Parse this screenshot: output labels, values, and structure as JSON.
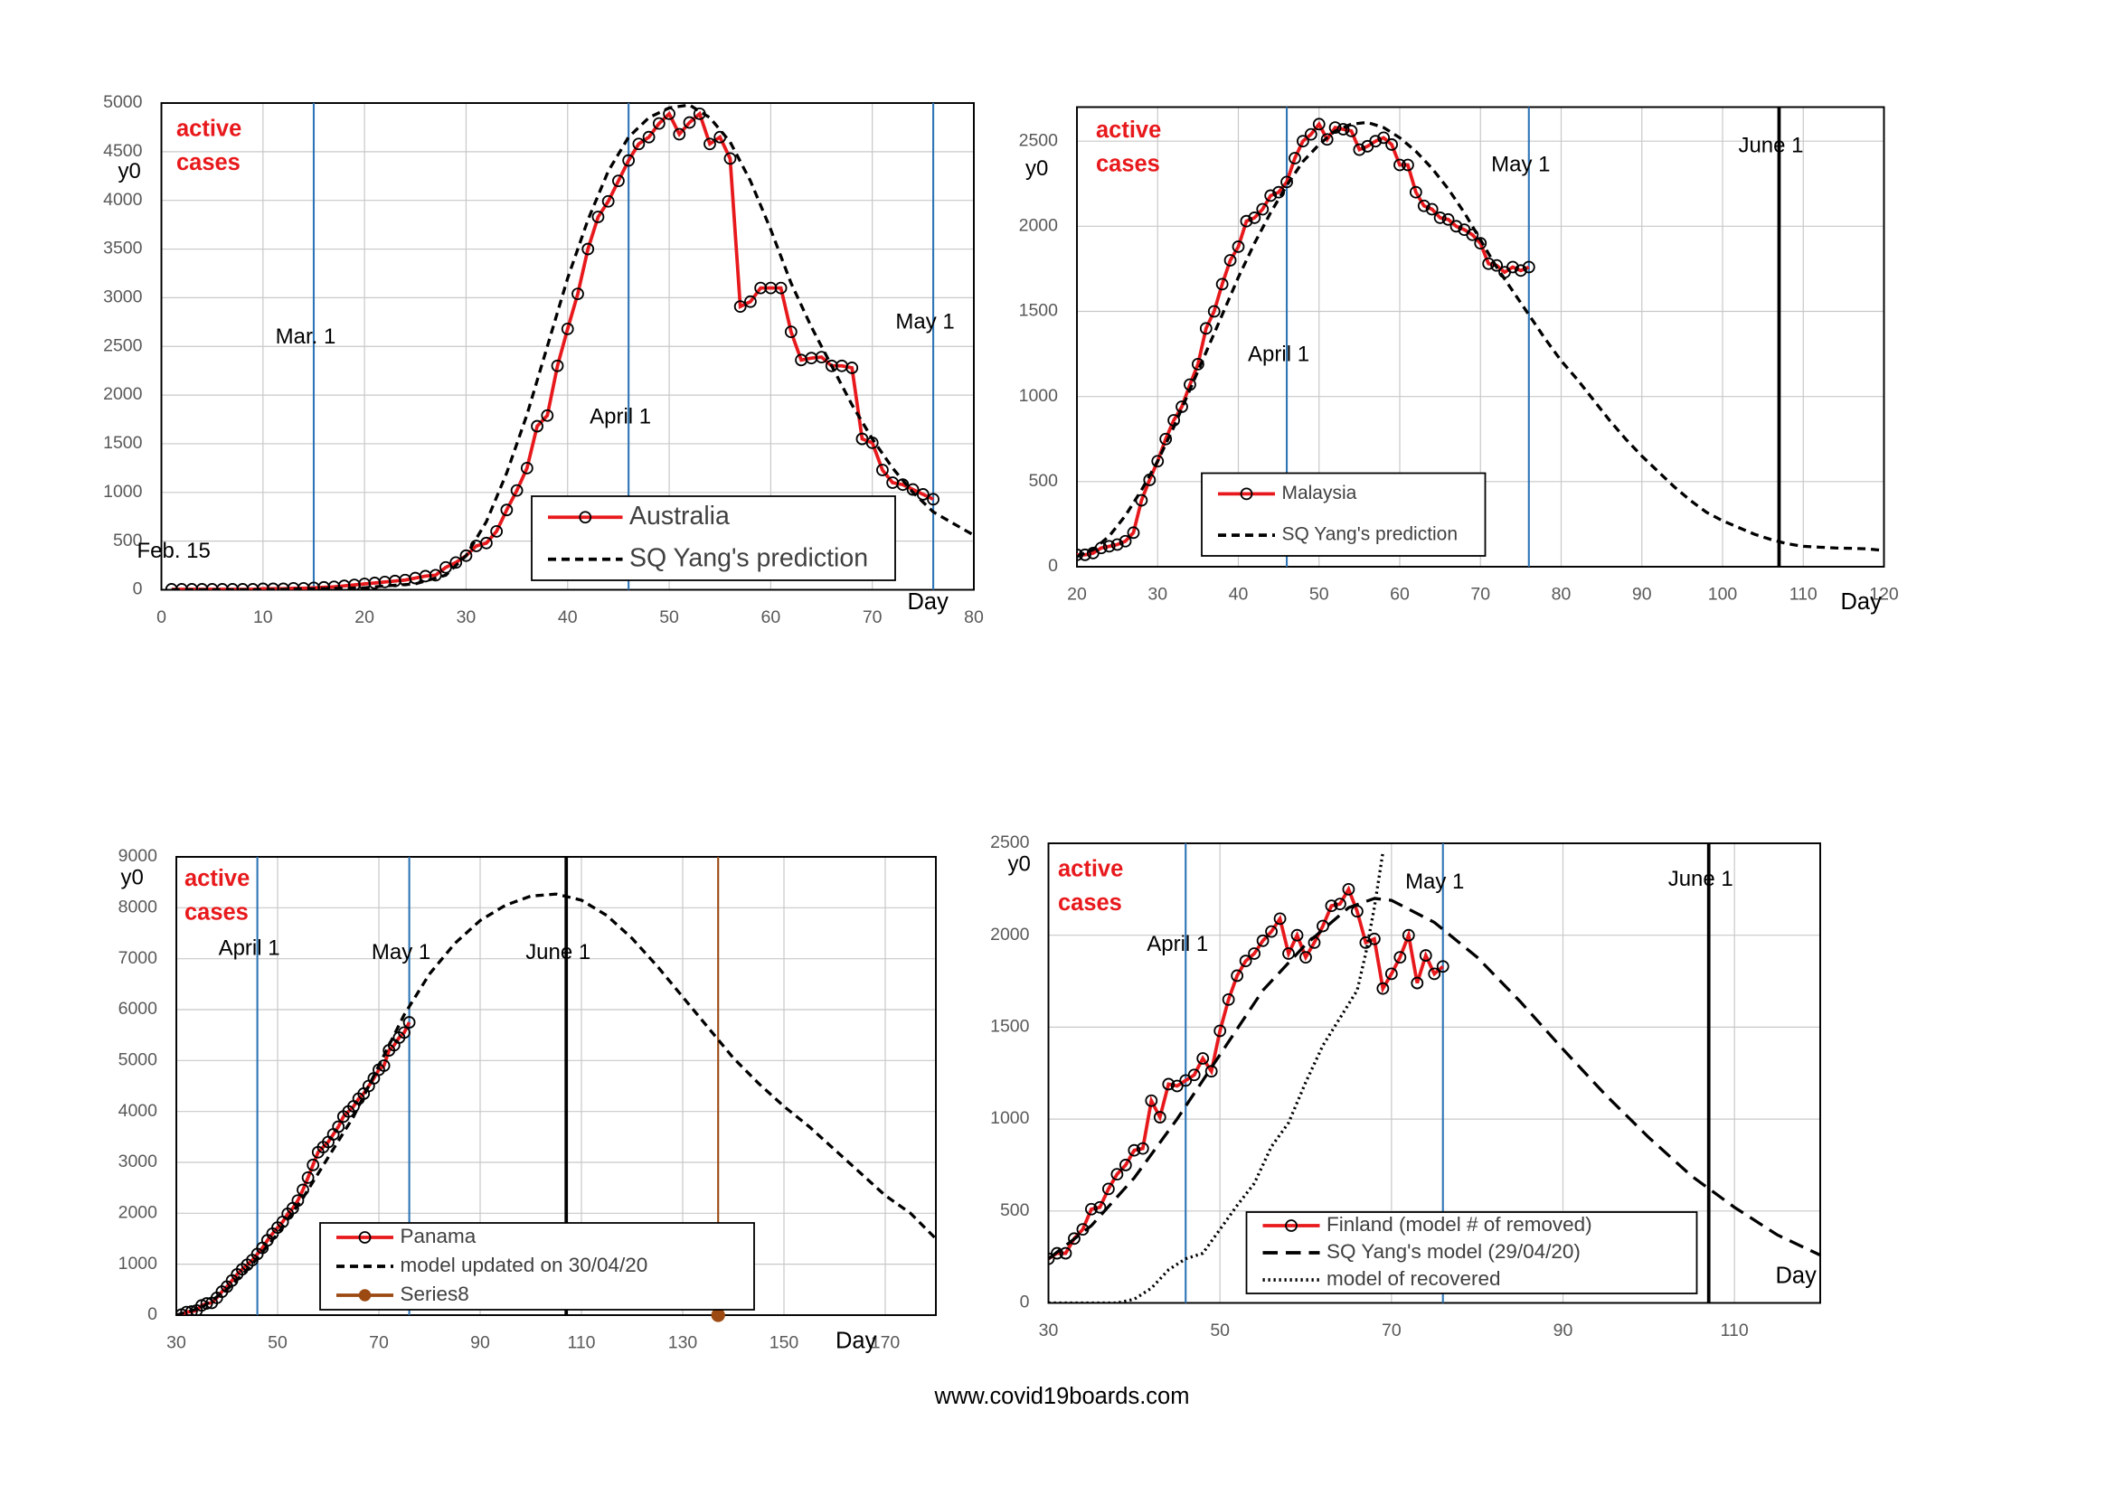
{
  "chart_data": [
    {
      "type": "line",
      "label_lines": [
        "active",
        "cases"
      ],
      "ylabel": "y0",
      "xlabel": "Day",
      "annotations": [
        "Feb. 15"
      ],
      "xlim": [
        0,
        80
      ],
      "xticks": [
        0,
        10,
        20,
        30,
        40,
        50,
        60,
        70,
        80
      ],
      "ylim": [
        0,
        5000
      ],
      "yticks": [
        0,
        500,
        1000,
        1500,
        2000,
        2500,
        3000,
        3500,
        4000,
        4500,
        5000
      ],
      "grid": true,
      "vlines": [
        {
          "x": 15,
          "label": "Mar. 1",
          "color": "#2e75b6"
        },
        {
          "x": 46,
          "label": "April 1",
          "color": "#2e75b6"
        },
        {
          "x": 76,
          "label": "May 1",
          "color": "#2e75b6"
        }
      ],
      "series": [
        {
          "name": "Australia",
          "style": "marker",
          "color": "#e8191c",
          "x": [
            1,
            2,
            3,
            4,
            5,
            6,
            7,
            8,
            9,
            10,
            11,
            12,
            13,
            14,
            15,
            16,
            17,
            18,
            19,
            20,
            21,
            22,
            23,
            24,
            25,
            26,
            27,
            28,
            29,
            30,
            31,
            32,
            33,
            34,
            35,
            36,
            37,
            38,
            39,
            40,
            41,
            42,
            43,
            44,
            45,
            46,
            47,
            48,
            49,
            50,
            51,
            52,
            53,
            54,
            55,
            56,
            57,
            58,
            59,
            60,
            61,
            62,
            63,
            64,
            65,
            66,
            67,
            68,
            69,
            70,
            71,
            72,
            73,
            74,
            75,
            76
          ],
          "values": [
            5,
            5,
            5,
            5,
            5,
            5,
            5,
            5,
            5,
            10,
            10,
            10,
            15,
            15,
            20,
            25,
            30,
            40,
            50,
            60,
            70,
            80,
            90,
            100,
            120,
            140,
            150,
            230,
            280,
            350,
            450,
            480,
            600,
            820,
            1020,
            1250,
            1680,
            1790,
            2300,
            2680,
            3040,
            3500,
            3830,
            3990,
            4200,
            4410,
            4580,
            4650,
            4790,
            4890,
            4680,
            4800,
            4890,
            4580,
            4650,
            4430,
            2910,
            2960,
            3100,
            3100,
            3100,
            2650,
            2360,
            2380,
            2390,
            2300,
            2300,
            2280,
            1550,
            1510,
            1230,
            1100,
            1080,
            1030,
            980,
            930
          ]
        },
        {
          "name": "SQ Yang's prediction",
          "style": "dashed",
          "color": "#000000",
          "x": [
            1,
            10,
            20,
            22,
            25,
            28,
            30,
            32,
            34,
            36,
            38,
            40,
            42,
            44,
            46,
            48,
            50,
            52,
            54,
            56,
            58,
            60,
            62,
            64,
            66,
            68,
            70,
            72,
            74,
            76,
            78,
            80
          ],
          "values": [
            0,
            0,
            20,
            40,
            60,
            150,
            350,
            700,
            1200,
            1800,
            2500,
            3200,
            3800,
            4300,
            4650,
            4850,
            4950,
            4980,
            4850,
            4600,
            4200,
            3700,
            3150,
            2700,
            2300,
            1900,
            1550,
            1250,
            1000,
            800,
            680,
            560
          ]
        }
      ]
    },
    {
      "type": "line",
      "label_lines": [
        "active",
        "cases"
      ],
      "ylabel": "y0",
      "xlabel": "Day",
      "annotations": [],
      "xlim": [
        20,
        120
      ],
      "xticks": [
        20,
        30,
        40,
        50,
        60,
        70,
        80,
        90,
        100,
        110,
        120
      ],
      "ylim": [
        0,
        2700
      ],
      "yticks": [
        0,
        500,
        1000,
        1500,
        2000,
        2500
      ],
      "grid": true,
      "vlines": [
        {
          "x": 46,
          "label": "April 1",
          "color": "#2e75b6"
        },
        {
          "x": 76,
          "label": "May 1",
          "color": "#2e75b6"
        },
        {
          "x": 107,
          "label": "June 1",
          "color": "#000000"
        }
      ],
      "series": [
        {
          "name": "Malaysia",
          "style": "marker",
          "color": "#e8191c",
          "x": [
            20,
            21,
            22,
            23,
            24,
            25,
            26,
            27,
            28,
            29,
            30,
            31,
            32,
            33,
            34,
            35,
            36,
            37,
            38,
            39,
            40,
            41,
            42,
            43,
            44,
            45,
            46,
            47,
            48,
            49,
            50,
            51,
            52,
            53,
            54,
            55,
            56,
            57,
            58,
            59,
            60,
            61,
            62,
            63,
            64,
            65,
            66,
            67,
            68,
            69,
            70,
            71,
            72,
            73,
            74,
            75,
            76
          ],
          "values": [
            70,
            70,
            80,
            110,
            120,
            130,
            150,
            200,
            390,
            510,
            620,
            750,
            860,
            940,
            1070,
            1190,
            1400,
            1500,
            1660,
            1800,
            1880,
            2030,
            2050,
            2100,
            2180,
            2200,
            2260,
            2400,
            2500,
            2540,
            2600,
            2510,
            2580,
            2570,
            2560,
            2450,
            2470,
            2500,
            2520,
            2480,
            2360,
            2360,
            2200,
            2120,
            2100,
            2050,
            2040,
            2000,
            1980,
            1950,
            1900,
            1780,
            1770,
            1730,
            1760,
            1740,
            1760
          ]
        },
        {
          "name": "SQ Yang's prediction",
          "style": "dashed",
          "color": "#000000",
          "x": [
            20,
            22,
            24,
            26,
            28,
            30,
            32,
            34,
            36,
            38,
            40,
            42,
            44,
            46,
            48,
            50,
            52,
            54,
            56,
            58,
            60,
            62,
            64,
            66,
            68,
            70,
            72,
            74,
            76,
            78,
            80,
            82,
            84,
            86,
            88,
            90,
            92,
            94,
            96,
            98,
            100,
            102,
            104,
            106,
            108,
            110,
            112,
            114,
            116,
            118,
            120
          ],
          "values": [
            60,
            100,
            180,
            300,
            450,
            620,
            820,
            1040,
            1260,
            1480,
            1700,
            1900,
            2080,
            2240,
            2380,
            2480,
            2560,
            2600,
            2610,
            2580,
            2520,
            2440,
            2340,
            2220,
            2080,
            1920,
            1760,
            1620,
            1480,
            1340,
            1210,
            1100,
            980,
            860,
            750,
            650,
            560,
            470,
            390,
            320,
            270,
            230,
            190,
            160,
            135,
            120,
            115,
            110,
            108,
            105,
            95
          ]
        }
      ]
    },
    {
      "type": "line",
      "label_lines": [
        "active",
        "cases"
      ],
      "ylabel": "y0",
      "xlabel": "Day",
      "annotations": [],
      "xlim": [
        30,
        180
      ],
      "xticks": [
        30,
        50,
        70,
        90,
        110,
        130,
        150,
        170
      ],
      "ylim": [
        0,
        9000
      ],
      "yticks": [
        0,
        1000,
        2000,
        3000,
        4000,
        5000,
        6000,
        7000,
        8000,
        9000
      ],
      "grid": true,
      "vlines": [
        {
          "x": 46,
          "label": "April 1",
          "color": "#2e75b6"
        },
        {
          "x": 76,
          "label": "May 1",
          "color": "#2e75b6"
        },
        {
          "x": 107,
          "label": "June 1",
          "color": "#000000"
        },
        {
          "x": 137,
          "color": "#9c4a12"
        }
      ],
      "series": [
        {
          "name": "Panama",
          "style": "marker",
          "color": "#e8191c",
          "x": [
            31,
            32,
            33,
            34,
            35,
            36,
            37,
            38,
            39,
            40,
            41,
            42,
            43,
            44,
            45,
            46,
            47,
            48,
            49,
            50,
            51,
            52,
            53,
            54,
            55,
            56,
            57,
            58,
            59,
            60,
            61,
            62,
            63,
            64,
            65,
            66,
            67,
            68,
            69,
            70,
            71,
            72,
            73,
            74,
            75,
            76
          ],
          "values": [
            10,
            60,
            70,
            90,
            190,
            230,
            240,
            340,
            460,
            560,
            680,
            800,
            900,
            990,
            1080,
            1200,
            1320,
            1470,
            1600,
            1720,
            1830,
            1990,
            2100,
            2250,
            2460,
            2700,
            2950,
            3200,
            3300,
            3400,
            3550,
            3700,
            3900,
            4000,
            4100,
            4250,
            4350,
            4500,
            4650,
            4820,
            4900,
            5200,
            5300,
            5450,
            5550,
            5750
          ]
        },
        {
          "name": "model updated on 30/04/20",
          "style": "dashed",
          "color": "#000000",
          "x": [
            30,
            35,
            40,
            45,
            50,
            55,
            60,
            65,
            70,
            75,
            80,
            85,
            90,
            95,
            100,
            105,
            110,
            115,
            120,
            125,
            130,
            135,
            140,
            145,
            150,
            155,
            160,
            165,
            170,
            175,
            180
          ],
          "values": [
            0,
            150,
            500,
            1000,
            1600,
            2300,
            3100,
            3900,
            4900,
            5900,
            6700,
            7300,
            7750,
            8050,
            8230,
            8270,
            8150,
            7850,
            7400,
            6850,
            6250,
            5650,
            5050,
            4550,
            4100,
            3700,
            3250,
            2800,
            2350,
            2000,
            1500
          ]
        },
        {
          "name": "Series8",
          "style": "point",
          "color": "#9c4a12",
          "x": [
            137
          ],
          "values": [
            0
          ]
        }
      ]
    },
    {
      "type": "line",
      "label_lines": [
        "active",
        "cases"
      ],
      "ylabel": "y0",
      "xlabel": "Day",
      "annotations": [],
      "xlim": [
        30,
        120
      ],
      "xticks": [
        30,
        50,
        70,
        90,
        110
      ],
      "ylim": [
        0,
        2500
      ],
      "yticks": [
        0,
        500,
        1000,
        1500,
        2000,
        2500
      ],
      "grid": true,
      "vlines": [
        {
          "x": 46,
          "label": "April 1",
          "color": "#2e75b6"
        },
        {
          "x": 76,
          "label": "May 1",
          "color": "#2e75b6"
        },
        {
          "x": 107,
          "label": "June 1",
          "color": "#000000"
        }
      ],
      "series": [
        {
          "name": "Finland (model # of removed)",
          "style": "marker",
          "color": "#e8191c",
          "x": [
            30,
            31,
            32,
            33,
            34,
            35,
            36,
            37,
            38,
            39,
            40,
            41,
            42,
            43,
            44,
            45,
            46,
            47,
            48,
            49,
            50,
            51,
            52,
            53,
            54,
            55,
            56,
            57,
            58,
            59,
            60,
            61,
            62,
            63,
            64,
            65,
            66,
            67,
            68,
            69,
            70,
            71,
            72,
            73,
            74,
            75,
            76
          ],
          "values": [
            240,
            270,
            270,
            350,
            400,
            510,
            520,
            620,
            700,
            750,
            830,
            840,
            1100,
            1010,
            1190,
            1180,
            1210,
            1240,
            1330,
            1260,
            1480,
            1650,
            1780,
            1860,
            1900,
            1970,
            2020,
            2090,
            1900,
            2000,
            1880,
            1960,
            2050,
            2160,
            2170,
            2250,
            2130,
            1960,
            1980,
            1710,
            1790,
            1880,
            2000,
            1740,
            1890,
            1790,
            1830
          ]
        },
        {
          "name": "SQ Yang's model (29/04/20)",
          "style": "long-dashed",
          "color": "#000000",
          "x": [
            30,
            35,
            40,
            45,
            50,
            55,
            60,
            65,
            68,
            70,
            75,
            80,
            85,
            90,
            95,
            100,
            105,
            110,
            115,
            120
          ],
          "values": [
            240,
            420,
            680,
            1000,
            1350,
            1700,
            1950,
            2150,
            2200,
            2190,
            2070,
            1880,
            1640,
            1380,
            1130,
            900,
            690,
            520,
            370,
            260
          ]
        },
        {
          "name": "model of recovered",
          "style": "dotted",
          "color": "#000000",
          "x": [
            30,
            38,
            40,
            42,
            44,
            46,
            48,
            50,
            52,
            54,
            56,
            58,
            60,
            62,
            64,
            66,
            67,
            68,
            69
          ],
          "values": [
            0,
            0,
            20,
            80,
            180,
            240,
            270,
            400,
            530,
            650,
            850,
            980,
            1200,
            1400,
            1550,
            1700,
            1900,
            2150,
            2450
          ]
        }
      ]
    }
  ],
  "footer": "www.covid19boards.com"
}
